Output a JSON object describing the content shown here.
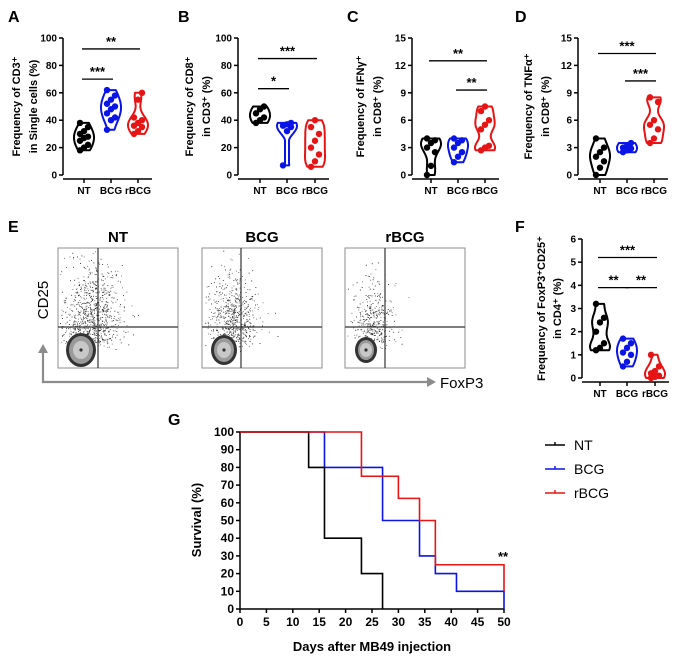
{
  "colors": {
    "NT": "#000000",
    "BCG": "#0a14e6",
    "rBCG": "#e61414",
    "flow_axis": "#8c8c8c"
  },
  "chart_data": [
    {
      "id": "A",
      "type": "violin",
      "panel_label": "A",
      "ylabel_line1": "Frequency of CD3⁺",
      "ylabel_line2": "in  Single cells (%)",
      "ylim": [
        0,
        100
      ],
      "yticks": [
        "0",
        "20",
        "40",
        "60",
        "80",
        "100"
      ],
      "categories": [
        "NT",
        "BCG",
        "rBCG"
      ],
      "series": [
        {
          "name": "NT",
          "values": [
            18,
            20,
            22,
            25,
            27,
            28,
            30,
            32,
            35,
            38
          ]
        },
        {
          "name": "BCG",
          "values": [
            33,
            40,
            42,
            45,
            48,
            50,
            52,
            55,
            58,
            62
          ]
        },
        {
          "name": "rBCG",
          "values": [
            30,
            32,
            35,
            36,
            38,
            40,
            42,
            55,
            60
          ]
        }
      ],
      "significance": [
        {
          "from": "NT",
          "to": "BCG",
          "y": 70,
          "label": "***"
        },
        {
          "from": "NT",
          "to": "rBCG",
          "y": 92,
          "label": "**"
        }
      ]
    },
    {
      "id": "B",
      "type": "violin",
      "panel_label": "B",
      "ylabel_line1": "Frequency of CD8⁺",
      "ylabel_line2": "in CD3⁺ (%)",
      "ylim": [
        0,
        100
      ],
      "yticks": [
        "0",
        "20",
        "40",
        "60",
        "80",
        "100"
      ],
      "categories": [
        "NT",
        "BCG",
        "rBCG"
      ],
      "series": [
        {
          "name": "NT",
          "values": [
            38,
            40,
            42,
            45,
            48,
            50
          ]
        },
        {
          "name": "BCG",
          "values": [
            7,
            32,
            35,
            36,
            37,
            38
          ]
        },
        {
          "name": "rBCG",
          "values": [
            6,
            10,
            15,
            20,
            25,
            30,
            35,
            40
          ]
        }
      ],
      "significance": [
        {
          "from": "NT",
          "to": "BCG",
          "y": 63,
          "label": "*"
        },
        {
          "from": "NT",
          "to": "rBCG",
          "y": 85,
          "label": "***"
        }
      ]
    },
    {
      "id": "C",
      "type": "violin",
      "panel_label": "C",
      "ylabel_line1": "Frequency of IFNγ⁺",
      "ylabel_line2": "in CD8⁺ (%)",
      "ylim": [
        0,
        15
      ],
      "yticks": [
        "0",
        "3",
        "6",
        "9",
        "12",
        "15"
      ],
      "categories": [
        "NT",
        "BCG",
        "rBCG"
      ],
      "series": [
        {
          "name": "NT",
          "values": [
            0,
            1,
            2.5,
            3,
            3.5,
            3.8,
            4
          ]
        },
        {
          "name": "BCG",
          "values": [
            1.4,
            2,
            2.5,
            3,
            3.5,
            3.8,
            4
          ]
        },
        {
          "name": "rBCG",
          "values": [
            2.7,
            3,
            3.2,
            5,
            5.5,
            6,
            7,
            7.5
          ]
        }
      ],
      "significance": [
        {
          "from": "NT",
          "to": "rBCG",
          "y": 12.5,
          "label": "**"
        },
        {
          "from": "BCG",
          "to": "rBCG",
          "y": 9.3,
          "label": "**"
        }
      ]
    },
    {
      "id": "D",
      "type": "violin",
      "panel_label": "D",
      "ylabel_line1": "Frequency of TNFα⁺",
      "ylabel_line2": "in CD8⁺ (%)",
      "ylim": [
        0,
        15
      ],
      "yticks": [
        "0",
        "3",
        "6",
        "9",
        "12",
        "15"
      ],
      "categories": [
        "NT",
        "BCG",
        "rBCG"
      ],
      "series": [
        {
          "name": "NT",
          "values": [
            0,
            0.8,
            1.5,
            2,
            2.5,
            3,
            4
          ]
        },
        {
          "name": "BCG",
          "values": [
            2.5,
            2.7,
            2.9,
            3.0,
            3.2,
            3.5
          ]
        },
        {
          "name": "rBCG",
          "values": [
            3.5,
            4,
            5,
            5.5,
            6,
            8,
            8.5
          ]
        }
      ],
      "significance": [
        {
          "from": "NT",
          "to": "rBCG",
          "y": 13.3,
          "label": "***"
        },
        {
          "from": "BCG",
          "to": "rBCG",
          "y": 10.3,
          "label": "***"
        }
      ]
    },
    {
      "id": "F",
      "type": "violin",
      "panel_label": "F",
      "ylabel_line1": "Frequency of FoxP3⁺CD25⁺",
      "ylabel_line2": "in  CD4⁺ (%)",
      "ylim": [
        0,
        6
      ],
      "yticks": [
        "0",
        "1",
        "2",
        "3",
        "4",
        "5",
        "6"
      ],
      "categories": [
        "NT",
        "BCG",
        "rBCG"
      ],
      "series": [
        {
          "name": "NT",
          "values": [
            1.2,
            1.3,
            1.5,
            2.0,
            2.4,
            2.6,
            3.2
          ]
        },
        {
          "name": "BCG",
          "values": [
            0.5,
            0.7,
            1.0,
            1.1,
            1.3,
            1.5,
            1.7
          ]
        },
        {
          "name": "rBCG",
          "values": [
            0,
            0.05,
            0.1,
            0.2,
            0.3,
            0.5,
            1.0
          ]
        }
      ],
      "significance": [
        {
          "from": "NT",
          "to": "rBCG",
          "y": 5.2,
          "label": "***"
        },
        {
          "from": "NT",
          "to": "BCG",
          "y": 3.9,
          "label": "**"
        },
        {
          "from": "BCG",
          "to": "rBCG",
          "y": 3.9,
          "label": "**"
        }
      ]
    },
    {
      "id": "G",
      "type": "line",
      "panel_label": "G",
      "xlabel": "Days after MB49 injection",
      "ylabel": "Survival (%)",
      "xlim": [
        0,
        50
      ],
      "ylim": [
        0,
        100
      ],
      "xticks": [
        "0",
        "5",
        "10",
        "15",
        "20",
        "25",
        "30",
        "35",
        "40",
        "45",
        "50"
      ],
      "yticks": [
        "0",
        "10",
        "20",
        "30",
        "40",
        "50",
        "60",
        "70",
        "80",
        "90",
        "100"
      ],
      "legend_placement": "right",
      "annotation": "**",
      "series": [
        {
          "name": "NT",
          "steps": [
            [
              0,
              100
            ],
            [
              13,
              80
            ],
            [
              16,
              40
            ],
            [
              23,
              20
            ],
            [
              27,
              0
            ]
          ]
        },
        {
          "name": "BCG",
          "steps": [
            [
              0,
              100
            ],
            [
              16,
              80
            ],
            [
              27,
              50
            ],
            [
              34,
              30
            ],
            [
              37,
              20
            ],
            [
              41,
              10
            ],
            [
              50,
              0
            ]
          ]
        },
        {
          "name": "rBCG",
          "steps": [
            [
              0,
              100
            ],
            [
              23,
              75
            ],
            [
              30,
              62.5
            ],
            [
              34,
              50
            ],
            [
              37,
              25
            ],
            [
              50,
              10
            ]
          ]
        }
      ]
    }
  ],
  "flow": {
    "panel_label": "E",
    "x_axis": "FoxP3",
    "y_axis": "CD25",
    "plots": [
      {
        "title": "NT"
      },
      {
        "title": "BCG"
      },
      {
        "title": "rBCG"
      }
    ]
  }
}
